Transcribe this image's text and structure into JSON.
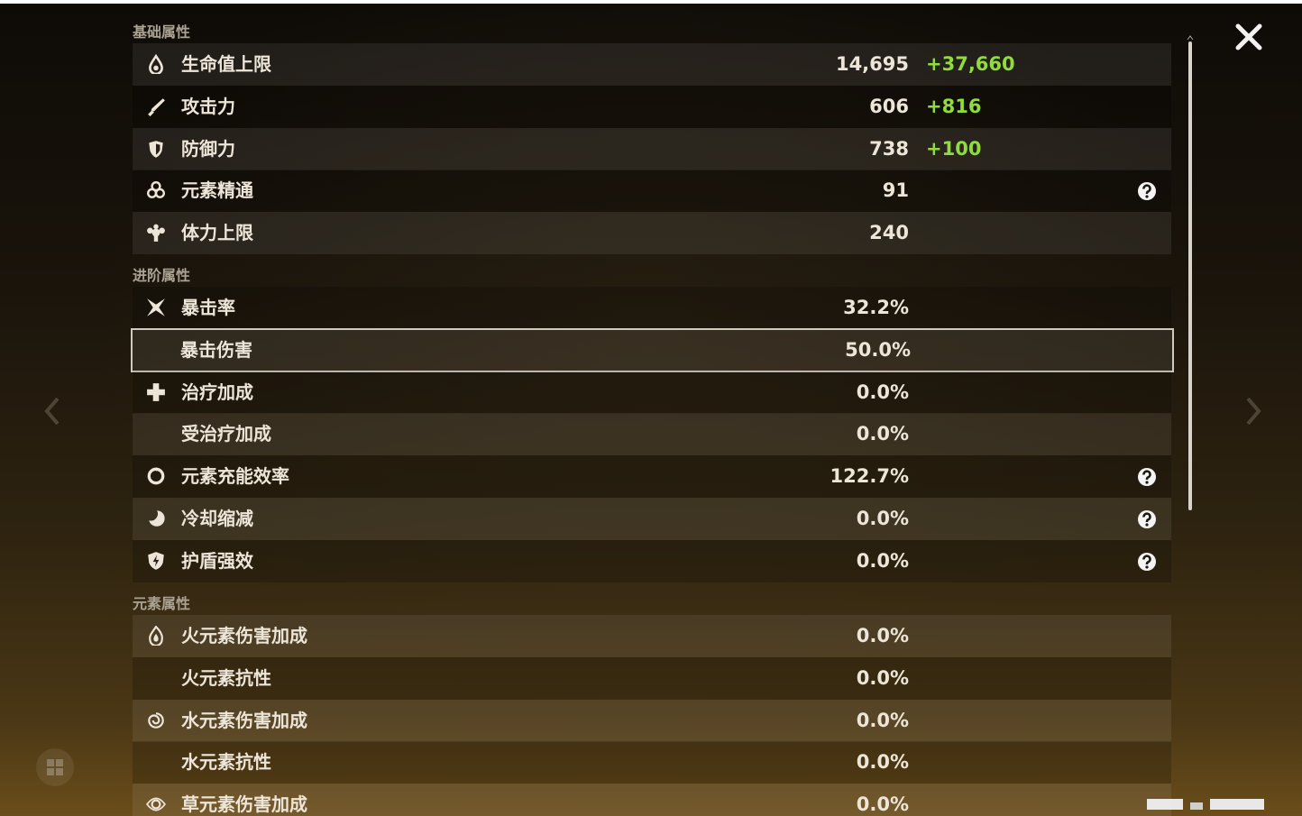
{
  "sections": [
    {
      "title": "基础属性",
      "rows": [
        {
          "label": "生命值上限",
          "value": "14,695",
          "bonus": "+37,660"
        },
        {
          "label": "攻击力",
          "value": "606",
          "bonus": "+816"
        },
        {
          "label": "防御力",
          "value": "738",
          "bonus": "+100"
        },
        {
          "label": "元素精通",
          "value": "91"
        },
        {
          "label": "体力上限",
          "value": "240"
        }
      ]
    },
    {
      "title": "进阶属性",
      "rows": [
        {
          "label": "暴击率",
          "value": "32.2%"
        },
        {
          "label": "暴击伤害",
          "value": "50.0%"
        },
        {
          "label": "治疗加成",
          "value": "0.0%"
        },
        {
          "label": "受治疗加成",
          "value": "0.0%"
        },
        {
          "label": "元素充能效率",
          "value": "122.7%"
        },
        {
          "label": "冷却缩减",
          "value": "0.0%"
        },
        {
          "label": "护盾强效",
          "value": "0.0%"
        }
      ]
    },
    {
      "title": "元素属性",
      "rows": [
        {
          "label": "火元素伤害加成",
          "value": "0.0%"
        },
        {
          "label": "火元素抗性",
          "value": "0.0%"
        },
        {
          "label": "水元素伤害加成",
          "value": "0.0%"
        },
        {
          "label": "水元素抗性",
          "value": "0.0%"
        },
        {
          "label": "草元素伤害加成",
          "value": "0.0%"
        }
      ]
    }
  ]
}
